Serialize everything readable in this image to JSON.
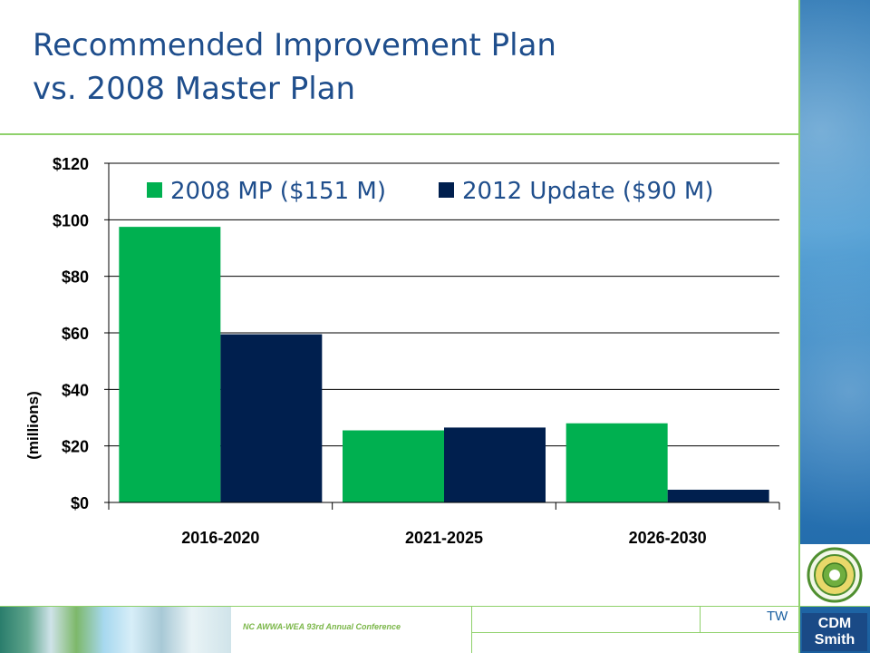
{
  "slide": {
    "title_line1": "Recommended Improvement Plan",
    "title_line2": "vs. 2008 Master Plan",
    "footer_conference": "NC AWWA-WEA 93rd Annual Conference",
    "initials": "TW",
    "logo_text_line1": "CDM",
    "logo_text_line2": "Smith",
    "seal_icon": "city-seal-icon",
    "colors": {
      "title": "#1f4e8c",
      "accent_rule": "#8fd16b",
      "series1": "#00b050",
      "series2": "#001f4e"
    }
  },
  "chart_data": {
    "type": "bar",
    "categories": [
      "2016-2020",
      "2021-2025",
      "2026-2030"
    ],
    "series": [
      {
        "name": "2008 MP ($151 M)",
        "values": [
          97.5,
          25.5,
          28
        ],
        "color": "#00b050"
      },
      {
        "name": "2012 Update ($90 M)",
        "values": [
          59.5,
          26.5,
          4.5
        ],
        "color": "#001f4e"
      }
    ],
    "ylabel": "(millions)",
    "xlabel": "",
    "ylim": [
      0,
      120
    ],
    "yticks": [
      0,
      20,
      40,
      60,
      80,
      100,
      120
    ],
    "ytick_labels": [
      "$0",
      "$20",
      "$40",
      "$60",
      "$80",
      "$100",
      "$120"
    ],
    "grid": true,
    "legend_position": "top"
  }
}
